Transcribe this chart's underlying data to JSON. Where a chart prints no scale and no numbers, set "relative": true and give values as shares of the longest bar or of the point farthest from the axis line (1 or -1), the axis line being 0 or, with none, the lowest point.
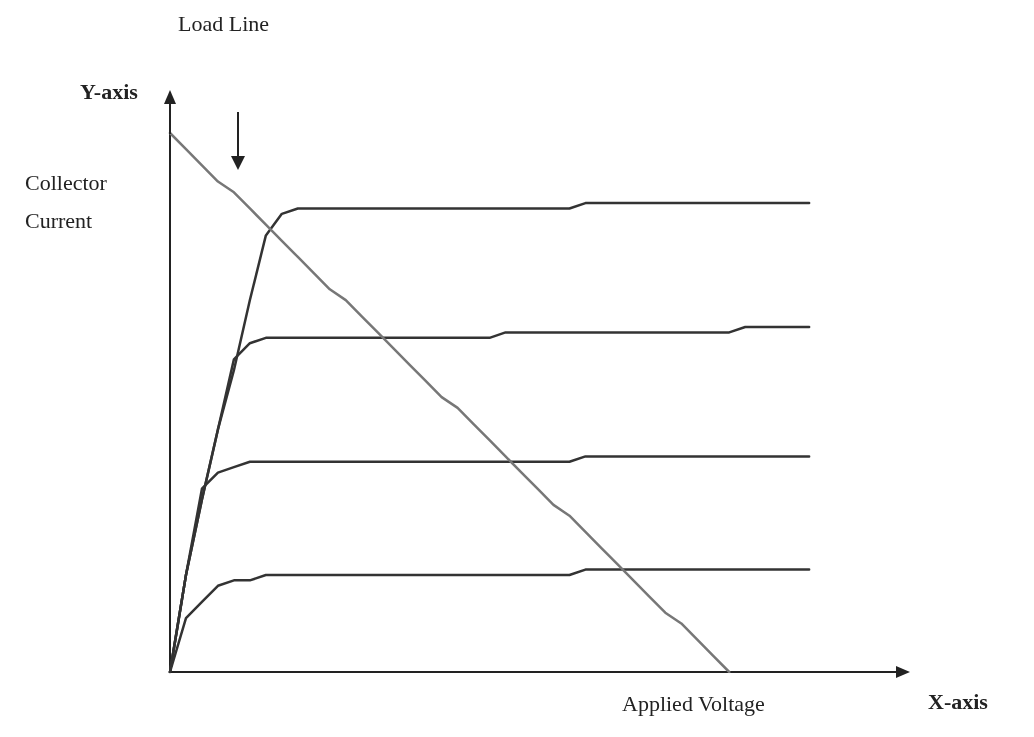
{
  "chart_data": {
    "type": "line",
    "relative": true,
    "xlabel": "Applied Voltage",
    "ylabel": "Collector Current",
    "annotations": [
      "Load Line",
      "Y-axis",
      "X-axis"
    ],
    "categories": [
      null,
      null,
      null,
      null,
      null,
      null,
      null,
      null,
      null,
      null,
      null,
      null,
      null,
      null,
      null,
      null,
      null,
      null,
      null,
      null,
      null,
      null,
      null,
      null,
      null,
      null,
      null,
      null,
      null,
      null,
      null,
      null,
      null,
      null,
      null,
      null,
      null,
      null,
      null,
      null,
      null,
      null,
      null,
      null,
      null,
      null,
      null
    ],
    "marker": "none",
    "line_style": "solid",
    "series": [
      {
        "color": "#333333",
        "values": [
          0,
          0.18,
          0.32,
          0.45,
          0.56,
          0.69,
          0.81,
          0.85,
          0.86,
          0.86,
          0.86,
          0.86,
          0.86,
          0.86,
          0.86,
          0.86,
          0.86,
          0.86,
          0.86,
          0.86,
          0.86,
          0.86,
          0.86,
          0.86,
          0.86,
          0.86,
          0.87,
          0.87,
          0.87,
          0.87,
          0.87,
          0.87,
          0.87,
          0.87,
          0.87,
          0.87,
          0.87,
          0.87,
          0.87,
          0.87,
          0.87,
          null,
          null,
          null,
          null,
          null,
          null
        ]
      },
      {
        "color": "#333333",
        "values": [
          0,
          0.18,
          0.32,
          0.45,
          0.58,
          0.61,
          0.62,
          0.62,
          0.62,
          0.62,
          0.62,
          0.62,
          0.62,
          0.62,
          0.62,
          0.62,
          0.62,
          0.62,
          0.62,
          0.62,
          0.62,
          0.63,
          0.63,
          0.63,
          0.63,
          0.63,
          0.63,
          0.63,
          0.63,
          0.63,
          0.63,
          0.63,
          0.63,
          0.63,
          0.63,
          0.63,
          0.64,
          0.64,
          0.64,
          0.64,
          0.64,
          null,
          null,
          null,
          null,
          null,
          null
        ]
      },
      {
        "color": "#333333",
        "values": [
          0,
          0.18,
          0.34,
          0.37,
          0.38,
          0.39,
          0.39,
          0.39,
          0.39,
          0.39,
          0.39,
          0.39,
          0.39,
          0.39,
          0.39,
          0.39,
          0.39,
          0.39,
          0.39,
          0.39,
          0.39,
          0.39,
          0.39,
          0.39,
          0.39,
          0.39,
          0.4,
          0.4,
          0.4,
          0.4,
          0.4,
          0.4,
          0.4,
          0.4,
          0.4,
          0.4,
          0.4,
          0.4,
          0.4,
          0.4,
          0.4,
          null,
          null,
          null,
          null,
          null,
          null
        ]
      },
      {
        "color": "#333333",
        "values": [
          0,
          0.1,
          0.13,
          0.16,
          0.17,
          0.17,
          0.18,
          0.18,
          0.18,
          0.18,
          0.18,
          0.18,
          0.18,
          0.18,
          0.18,
          0.18,
          0.18,
          0.18,
          0.18,
          0.18,
          0.18,
          0.18,
          0.18,
          0.18,
          0.18,
          0.18,
          0.19,
          0.19,
          0.19,
          0.19,
          0.19,
          0.19,
          0.19,
          0.19,
          0.19,
          0.19,
          0.19,
          0.19,
          0.19,
          0.19,
          0.19,
          null,
          null,
          null,
          null,
          null,
          null
        ]
      },
      {
        "color": "#777777",
        "values": [
          1,
          0.97,
          0.94,
          0.91,
          0.89,
          0.86,
          0.83,
          0.8,
          0.77,
          0.74,
          0.71,
          0.69,
          0.66,
          0.63,
          0.6,
          0.57,
          0.54,
          0.51,
          0.49,
          0.46,
          0.43,
          0.4,
          0.37,
          0.34,
          0.31,
          0.29,
          0.26,
          0.23,
          0.2,
          0.17,
          0.14,
          0.11,
          0.09,
          0.06,
          0.03,
          0,
          null,
          null,
          null,
          null,
          null,
          null,
          null,
          null,
          null,
          null,
          null
        ]
      }
    ]
  }
}
